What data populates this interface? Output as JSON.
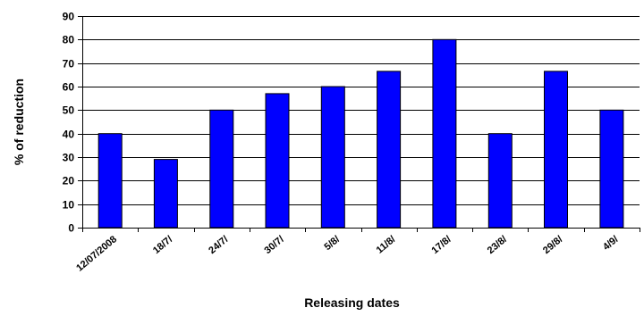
{
  "chart_data": {
    "type": "bar",
    "categories": [
      "12/07/2008",
      "18/7/",
      "24/7/",
      "30/7/",
      "5/8/",
      "11/8/",
      "17/8/",
      "23/8/",
      "29/8/",
      "4/9/"
    ],
    "values": [
      40,
      29,
      50,
      57,
      60,
      66.5,
      80,
      40,
      66.5,
      50
    ],
    "title": "",
    "xlabel": "Releasing dates",
    "ylabel": "% of reduction",
    "ylim": [
      0,
      90
    ],
    "yticks": [
      0,
      10,
      20,
      30,
      40,
      50,
      60,
      70,
      80,
      90
    ],
    "grid": true,
    "legend": "none",
    "colors": {
      "bar": "#0000ff",
      "bar_edge": "#000000",
      "grid": "#000000"
    }
  }
}
